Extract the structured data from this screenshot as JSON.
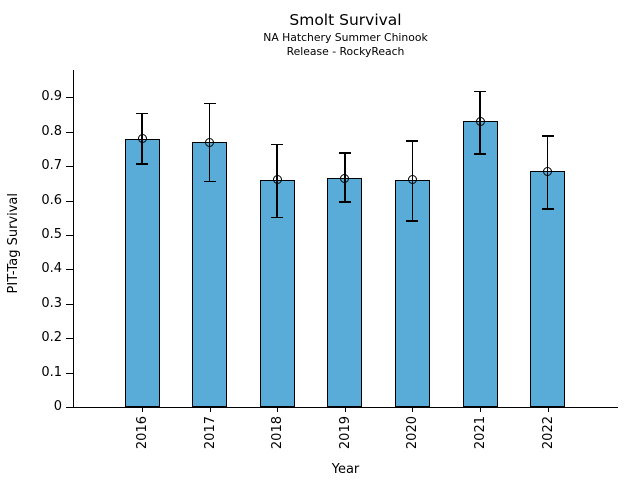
{
  "chart_data": {
    "type": "bar",
    "title": "Smolt Survival",
    "subtitle": [
      "NA Hatchery Summer Chinook",
      "Release - RockyReach"
    ],
    "xlabel": "Year",
    "ylabel": "PIT-Tag Survival",
    "categories": [
      "2016",
      "2017",
      "2018",
      "2019",
      "2020",
      "2021",
      "2022"
    ],
    "values": [
      0.78,
      0.77,
      0.66,
      0.665,
      0.66,
      0.83,
      0.685
    ],
    "error_low": [
      0.705,
      0.655,
      0.55,
      0.595,
      0.54,
      0.735,
      0.575
    ],
    "error_high": [
      0.855,
      0.885,
      0.765,
      0.74,
      0.775,
      0.92,
      0.79
    ],
    "yticks": [
      0,
      0.1,
      0.2,
      0.3,
      0.4,
      0.5,
      0.6,
      0.7,
      0.8,
      0.9
    ],
    "ytick_labels": [
      "0",
      "0.1",
      "0.2",
      "0.3",
      "0.4",
      "0.5",
      "0.6",
      "0.7",
      "0.8",
      "0.9"
    ],
    "ylim": [
      0,
      0.98
    ],
    "grid": false,
    "legend": null,
    "marker": "open-circle",
    "bar_color": "#5aacd8",
    "bar_edge_color": "#000000",
    "error_color": "#000000"
  }
}
